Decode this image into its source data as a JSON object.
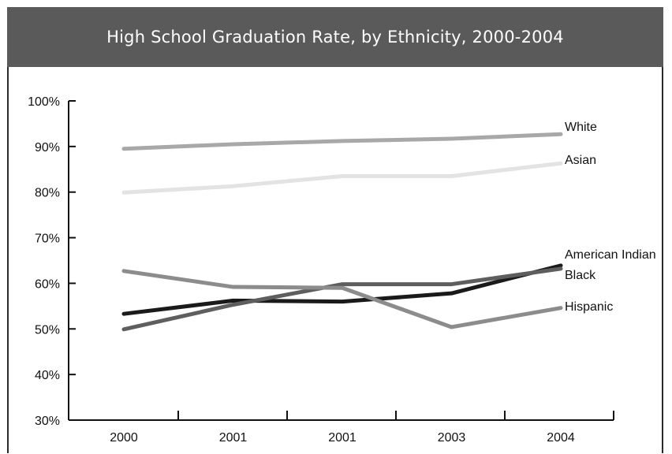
{
  "chart_data": {
    "type": "line",
    "title": "High School Graduation Rate, by Ethnicity, 2000-2004",
    "categories": [
      "2000",
      "2001",
      "2001",
      "2003",
      "2004"
    ],
    "y_ticks": [
      "100%",
      "90%",
      "80%",
      "70%",
      "60%",
      "50%",
      "40%",
      "30%"
    ],
    "ylim": [
      30,
      100
    ],
    "grid": false,
    "series": [
      {
        "name": "White",
        "values": [
          89.5,
          90.5,
          91.2,
          91.7,
          92.7
        ],
        "color": "#a8a8a8"
      },
      {
        "name": "Asian",
        "values": [
          79.9,
          81.3,
          83.5,
          83.5,
          86.3
        ],
        "color": "#e3e3e3"
      },
      {
        "name": "American Indian",
        "values": [
          53.3,
          56.2,
          56.0,
          57.8,
          63.9
        ],
        "color": "#1a1a1a"
      },
      {
        "name": "Black",
        "values": [
          49.9,
          55.3,
          59.8,
          59.8,
          63.2
        ],
        "color": "#5e5e5e"
      },
      {
        "name": "Hispanic",
        "values": [
          62.7,
          59.2,
          59.0,
          50.4,
          54.6
        ],
        "color": "#8c8c8c"
      }
    ]
  }
}
